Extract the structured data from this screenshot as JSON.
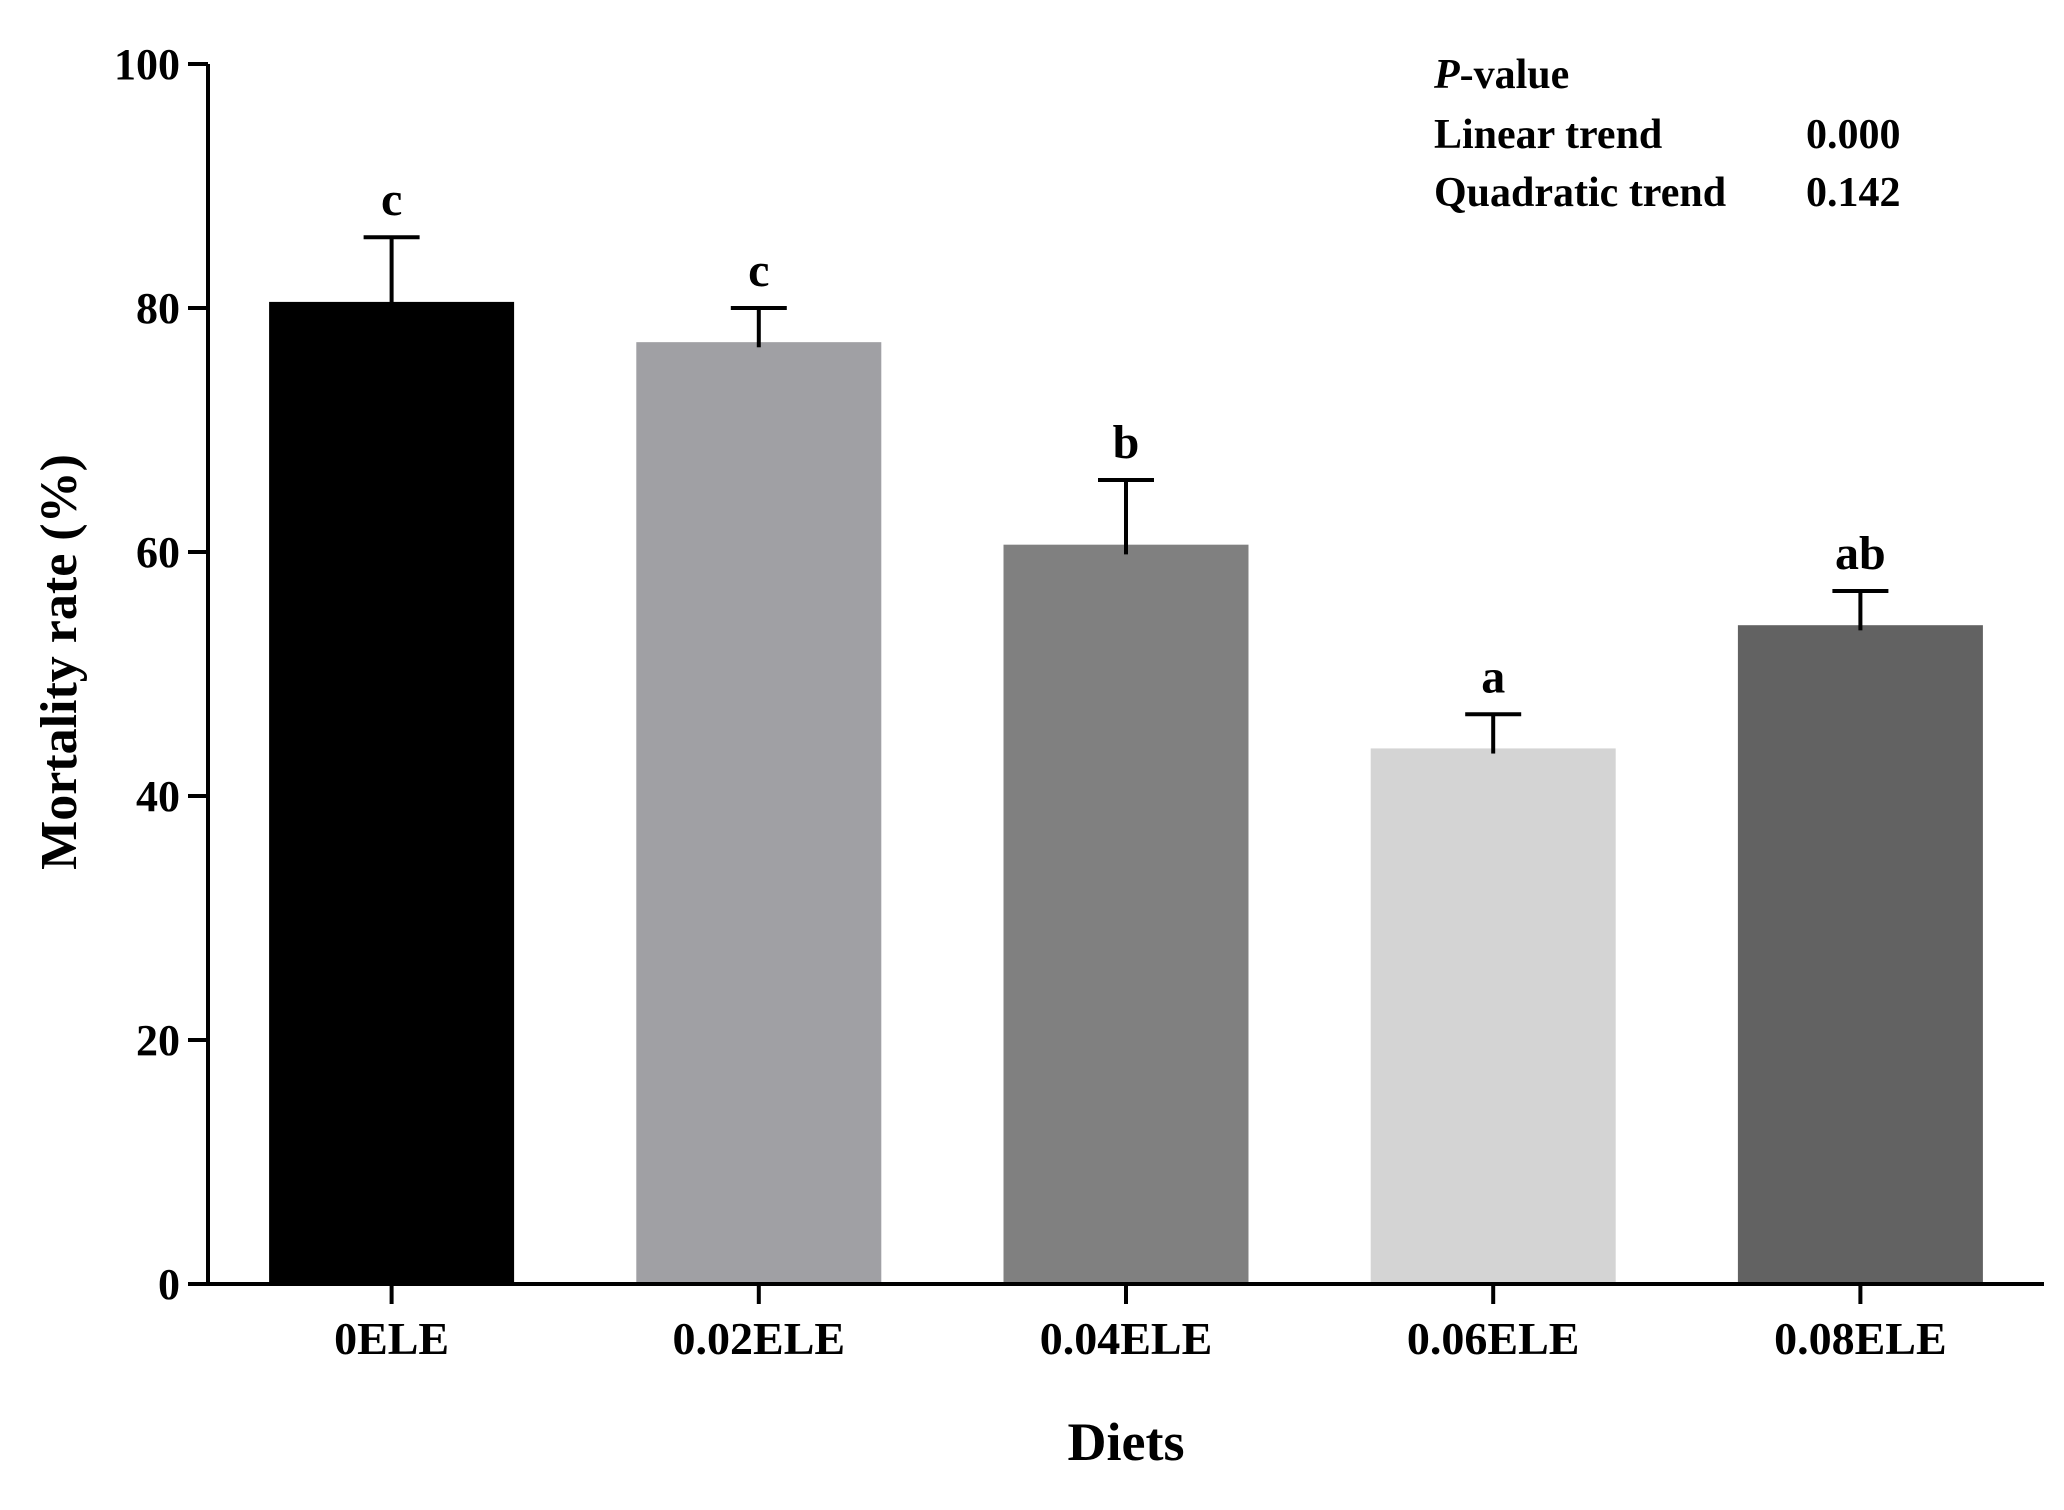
{
  "chart_data": {
    "type": "bar",
    "title": "",
    "xlabel": "Diets",
    "ylabel": "Mortality rate (%)",
    "ylim": [
      0,
      100
    ],
    "yticks": [
      0,
      20,
      40,
      60,
      80,
      100
    ],
    "grid": false,
    "categories": [
      "0ELE",
      "0.02ELE",
      "0.04ELE",
      "0.06ELE",
      "0.08ELE"
    ],
    "values": [
      80.5,
      77.2,
      60.6,
      43.9,
      54.0
    ],
    "errors": [
      5.3,
      2.8,
      5.3,
      2.8,
      2.8
    ],
    "significance_letters": [
      "c",
      "c",
      "b",
      "a",
      "ab"
    ],
    "bar_colors": [
      "#000000",
      "#a0a0a4",
      "#808080",
      "#d4d4d4",
      "#626262"
    ],
    "error_bar_color": "#000000",
    "annotation": {
      "header_italic": "P",
      "header_rest": "-value",
      "rows": [
        {
          "label": "Linear trend",
          "value": "0.000"
        },
        {
          "label": "Quadratic trend",
          "value": "0.142"
        }
      ]
    }
  }
}
